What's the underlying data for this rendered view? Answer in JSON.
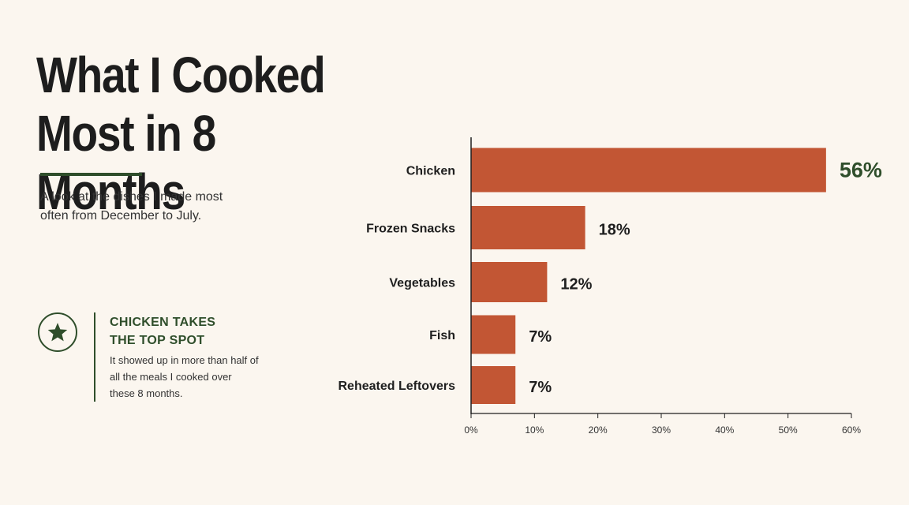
{
  "header": {
    "title_line1": "What I Cooked",
    "title_line2": "Most in 8 Months",
    "subtitle": "A look at the dishes I made most often from December to July."
  },
  "callout": {
    "icon": "star-icon",
    "heading_line1": "CHICKEN TAKES",
    "heading_line2": "THE TOP SPOT",
    "text": "It showed up in more than half of all the meals I cooked over these 8 months."
  },
  "colors": {
    "bar": "#c25634",
    "accent": "#2f4e2b",
    "background": "#fbf6ef"
  },
  "chart_data": {
    "type": "bar",
    "orientation": "horizontal",
    "categories": [
      "Chicken",
      "Frozen Snacks",
      "Vegetables",
      "Fish",
      "Reheated Leftovers"
    ],
    "values": [
      56,
      18,
      12,
      7,
      7
    ],
    "value_labels": [
      "56%",
      "18%",
      "12%",
      "7%",
      "7%"
    ],
    "xlim": [
      0,
      60
    ],
    "xticks": [
      0,
      10,
      20,
      30,
      40,
      50,
      60
    ],
    "xtick_labels": [
      "0%",
      "10%",
      "20%",
      "30%",
      "40%",
      "50%",
      "60%"
    ],
    "grid": false,
    "legend": "none"
  }
}
